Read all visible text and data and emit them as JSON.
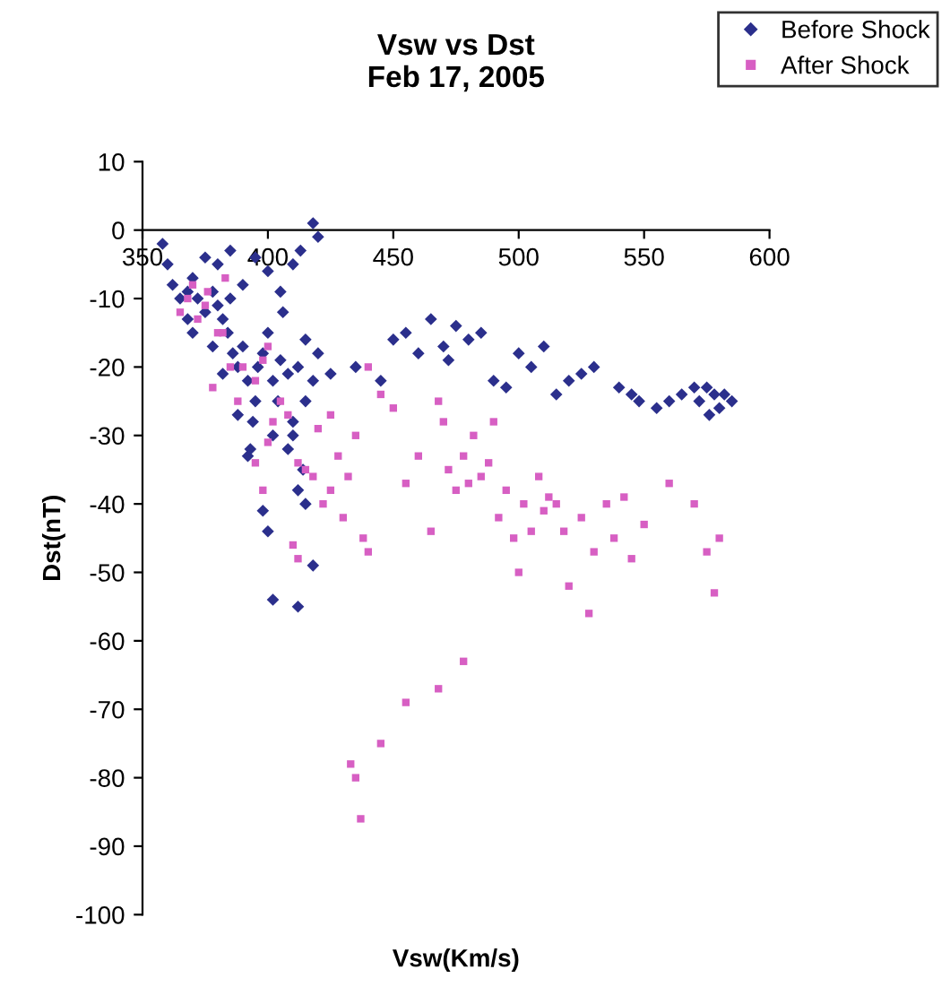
{
  "chart_data": {
    "type": "scatter",
    "title": "Vsw vs Dst\nFeb 17, 2005",
    "xlabel": "Vsw(Km/s)",
    "ylabel": "Dst(nT)",
    "xlim": [
      350,
      600
    ],
    "xticks": [
      350,
      400,
      450,
      500,
      550,
      600
    ],
    "ylim": [
      -100,
      10
    ],
    "yticks": [
      -100,
      -90,
      -80,
      -70,
      -60,
      -50,
      -40,
      -30,
      -20,
      -10,
      0,
      10
    ],
    "grid": false,
    "legend": "top right",
    "series": [
      {
        "name": "Before Shock",
        "color": "#2b2f8c",
        "marker": "diamond",
        "x": [
          358,
          360,
          362,
          365,
          368,
          370,
          372,
          375,
          378,
          380,
          382,
          384,
          385,
          386,
          388,
          390,
          392,
          395,
          396,
          398,
          400,
          402,
          404,
          405,
          408,
          410,
          412,
          415,
          418,
          420,
          418,
          413,
          410,
          405,
          400,
          395,
          390,
          385,
          380,
          375,
          392,
          393,
          398,
          400,
          402,
          412,
          418,
          415,
          412,
          410,
          425,
          435,
          445,
          450,
          455,
          460,
          465,
          470,
          472,
          475,
          480,
          485,
          490,
          495,
          500,
          505,
          510,
          515,
          520,
          525,
          530,
          540,
          545,
          548,
          555,
          560,
          565,
          570,
          572,
          575,
          578,
          580,
          582,
          585,
          576,
          368,
          370,
          378,
          382,
          388,
          394,
          402,
          408,
          414,
          406,
          415,
          420
        ],
        "values": [
          -2,
          -5,
          -8,
          -10,
          -9,
          -7,
          -10,
          -12,
          -9,
          -11,
          -13,
          -15,
          -10,
          -18,
          -20,
          -17,
          -22,
          -25,
          -20,
          -18,
          -15,
          -22,
          -25,
          -19,
          -21,
          -28,
          -20,
          -25,
          -22,
          -1,
          1,
          -3,
          -5,
          -9,
          -6,
          -4,
          -8,
          -3,
          -5,
          -4,
          -33,
          -32,
          -41,
          -44,
          -54,
          -55,
          -49,
          -40,
          -38,
          -30,
          -21,
          -20,
          -22,
          -16,
          -15,
          -18,
          -13,
          -17,
          -19,
          -14,
          -16,
          -15,
          -22,
          -23,
          -18,
          -20,
          -17,
          -24,
          -22,
          -21,
          -20,
          -23,
          -24,
          -25,
          -26,
          -25,
          -24,
          -23,
          -25,
          -23,
          -24,
          -26,
          -24,
          -25,
          -27,
          -13,
          -15,
          -17,
          -21,
          -27,
          -28,
          -30,
          -32,
          -35,
          -12,
          -16,
          -18
        ]
      },
      {
        "name": "After Shock",
        "color": "#d75fc3",
        "marker": "square",
        "x": [
          365,
          368,
          370,
          372,
          375,
          378,
          380,
          385,
          388,
          390,
          395,
          398,
          400,
          405,
          408,
          412,
          415,
          418,
          420,
          422,
          425,
          428,
          430,
          432,
          435,
          438,
          440,
          433,
          435,
          437,
          445,
          455,
          468,
          478,
          440,
          445,
          450,
          455,
          460,
          465,
          468,
          470,
          472,
          475,
          478,
          480,
          482,
          485,
          488,
          490,
          492,
          495,
          498,
          500,
          502,
          505,
          508,
          510,
          512,
          515,
          518,
          520,
          525,
          528,
          530,
          535,
          538,
          542,
          545,
          550,
          560,
          570,
          575,
          578,
          580,
          410,
          412,
          425,
          398,
          400,
          395,
          402,
          382,
          376,
          383
        ],
        "values": [
          -12,
          -10,
          -8,
          -13,
          -11,
          -23,
          -15,
          -20,
          -25,
          -20,
          -22,
          -19,
          -17,
          -25,
          -27,
          -34,
          -35,
          -36,
          -29,
          -40,
          -38,
          -33,
          -42,
          -36,
          -30,
          -45,
          -47,
          -78,
          -80,
          -86,
          -75,
          -69,
          -67,
          -63,
          -20,
          -24,
          -26,
          -37,
          -33,
          -44,
          -25,
          -28,
          -35,
          -38,
          -33,
          -37,
          -30,
          -36,
          -34,
          -28,
          -42,
          -38,
          -45,
          -50,
          -40,
          -44,
          -36,
          -41,
          -39,
          -40,
          -44,
          -52,
          -42,
          -56,
          -47,
          -40,
          -45,
          -39,
          -48,
          -43,
          -37,
          -40,
          -47,
          -53,
          -45,
          -46,
          -48,
          -27,
          -38,
          -31,
          -34,
          -28,
          -15,
          -9,
          -7
        ]
      }
    ]
  }
}
